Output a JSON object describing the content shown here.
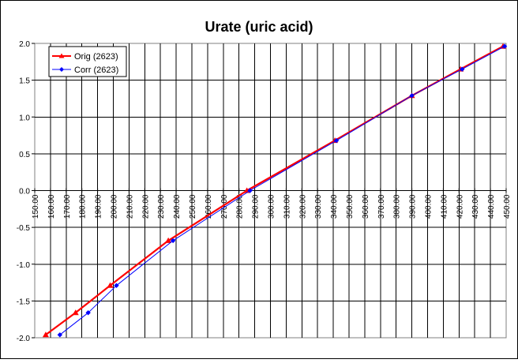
{
  "chart_data": {
    "type": "line",
    "title": "Urate (uric acid)",
    "xlabel": "",
    "ylabel": "",
    "xlim": [
      150,
      450
    ],
    "ylim": [
      -2.0,
      2.0
    ],
    "x_ticks": [
      "150.00",
      "160.00",
      "170.00",
      "180.00",
      "190.00",
      "200.00",
      "210.00",
      "220.00",
      "230.00",
      "240.00",
      "250.00",
      "260.00",
      "270.00",
      "280.00",
      "290.00",
      "300.00",
      "310.00",
      "320.00",
      "330.00",
      "340.00",
      "350.00",
      "360.00",
      "370.00",
      "380.00",
      "390.00",
      "400.00",
      "410.00",
      "420.00",
      "430.00",
      "440.00",
      "450.00"
    ],
    "y_ticks": [
      "2.0",
      "1.5",
      "1.0",
      "0.5",
      "0.0",
      "-0.5",
      "-1.0",
      "-1.5",
      "-2.0"
    ],
    "grid": true,
    "legend_position": "top-left",
    "series": [
      {
        "name": "Orig (2623)",
        "color": "#ff0000",
        "marker": "triangle",
        "points": [
          {
            "x": 157,
            "y": -1.96
          },
          {
            "x": 176,
            "y": -1.66
          },
          {
            "x": 198,
            "y": -1.29
          },
          {
            "x": 235,
            "y": -0.68
          },
          {
            "x": 285,
            "y": 0.0
          },
          {
            "x": 341,
            "y": 0.68
          },
          {
            "x": 390,
            "y": 1.29
          },
          {
            "x": 421,
            "y": 1.65
          },
          {
            "x": 448,
            "y": 1.96
          }
        ]
      },
      {
        "name": "Corr (2623)",
        "color": "#0000ff",
        "marker": "diamond",
        "points": [
          {
            "x": 166,
            "y": -1.96
          },
          {
            "x": 184,
            "y": -1.66
          },
          {
            "x": 202,
            "y": -1.29
          },
          {
            "x": 238,
            "y": -0.68
          },
          {
            "x": 287,
            "y": 0.0
          },
          {
            "x": 342,
            "y": 0.68
          },
          {
            "x": 390,
            "y": 1.29
          },
          {
            "x": 422,
            "y": 1.65
          },
          {
            "x": 449,
            "y": 1.96
          }
        ]
      }
    ]
  }
}
